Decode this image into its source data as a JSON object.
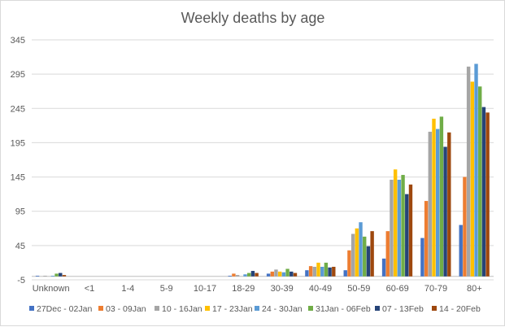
{
  "chart_data": {
    "type": "bar",
    "title": "Weekly deaths by age",
    "xlabel": "",
    "ylabel": "",
    "ylim": [
      -5,
      345
    ],
    "yticks": [
      -5,
      45,
      95,
      145,
      195,
      245,
      295,
      345
    ],
    "grid": true,
    "legend_position": "bottom",
    "categories": [
      "Unknown",
      "<1",
      "1-4",
      "5-9",
      "10-17",
      "18-29",
      "30-39",
      "40-49",
      "50-59",
      "60-69",
      "70-79",
      "80+"
    ],
    "series": [
      {
        "name": "27Dec - 02Jan",
        "color": "#4472c4",
        "values": [
          1,
          0,
          0,
          0,
          0,
          1,
          4,
          9,
          9,
          26,
          56,
          75
        ]
      },
      {
        "name": "03 - 09Jan",
        "color": "#ed7d31",
        "values": [
          0,
          0,
          0,
          0,
          0,
          4,
          7,
          15,
          38,
          66,
          110,
          145
        ]
      },
      {
        "name": "10 - 16Jan",
        "color": "#a5a5a5",
        "values": [
          1,
          0,
          0,
          0,
          0,
          2,
          10,
          14,
          62,
          141,
          211,
          306
        ]
      },
      {
        "name": "17 - 23Jan",
        "color": "#ffc000",
        "values": [
          0,
          0,
          0,
          0,
          0,
          0,
          7,
          20,
          70,
          156,
          230,
          284
        ]
      },
      {
        "name": "24 - 30Jan",
        "color": "#5b9bd5",
        "values": [
          1,
          0,
          0,
          0,
          0,
          3,
          6,
          14,
          79,
          141,
          215,
          310
        ]
      },
      {
        "name": "31Jan - 06Feb",
        "color": "#70ad47",
        "values": [
          4,
          0,
          0,
          0,
          0,
          5,
          11,
          20,
          58,
          148,
          233,
          277
        ]
      },
      {
        "name": "07 - 13Feb",
        "color": "#264478",
        "values": [
          5,
          0,
          0,
          0,
          0,
          8,
          7,
          13,
          44,
          120,
          189,
          247
        ]
      },
      {
        "name": "14 - 20Feb",
        "color": "#9e480e",
        "values": [
          2,
          0,
          0,
          0,
          0,
          5,
          5,
          14,
          66,
          134,
          210,
          239
        ]
      }
    ]
  }
}
